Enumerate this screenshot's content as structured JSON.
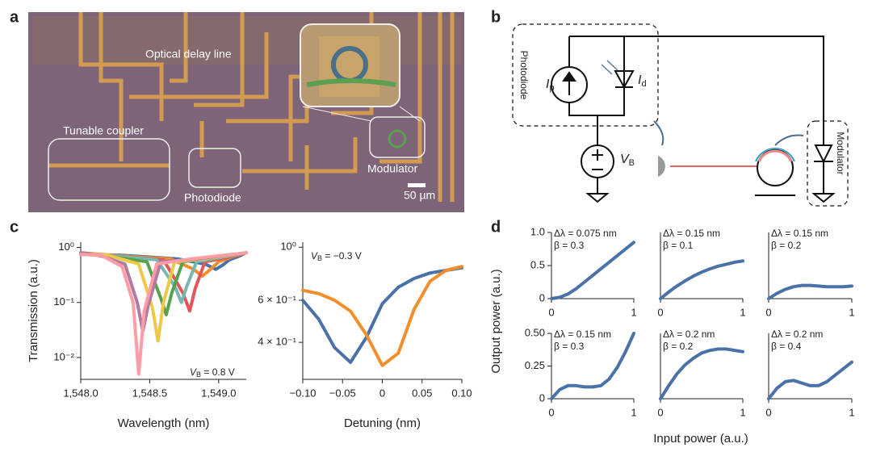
{
  "panel_labels": [
    "a",
    "b",
    "c",
    "d"
  ],
  "micrograph": {
    "labels": [
      "Optical delay line",
      "Tunable coupler",
      "Photodiode",
      "Modulator"
    ],
    "scale_bar": "50 µm"
  },
  "circuit": {
    "photodiode": "Photodiode",
    "modulator": "Modulator",
    "ip": {
      "main": "I",
      "sub": "p"
    },
    "id": {
      "main": "I",
      "sub": "d"
    },
    "vb": {
      "main": "V",
      "sub": "B"
    }
  },
  "panel_d_axes": {
    "xlabel": "Input power (a.u.)",
    "ylabel": "Output power (a.u.)"
  },
  "chart_data": [
    {
      "type": "line",
      "log_y": true,
      "xlabel": "Wavelength (nm)",
      "ylabel": "Transmission (a.u.)",
      "xlim": [
        1548.0,
        1549.2
      ],
      "ylim": [
        0.004,
        1.25
      ],
      "xticks": [
        {
          "value": 1548.0,
          "label": "1,548.0"
        },
        {
          "value": 1548.5,
          "label": "1,548.5"
        },
        {
          "value": 1549.0,
          "label": "1,549.0"
        }
      ],
      "yticks": [
        {
          "value": 1,
          "label": "10⁰"
        },
        {
          "value": 0.1,
          "label": "10⁻¹"
        },
        {
          "value": 0.01,
          "label": "10⁻²"
        }
      ],
      "annotation": {
        "main": "V",
        "sub": "B",
        "rest": " = 0.8 V"
      },
      "series": [
        {
          "color": "#4a72a8",
          "x": [
            1548.0,
            1548.3,
            1548.7,
            1548.9,
            1548.98,
            1549.03,
            1549.08,
            1549.15,
            1549.2
          ],
          "values": [
            0.75,
            0.72,
            0.62,
            0.5,
            0.4,
            0.48,
            0.6,
            0.7,
            0.8
          ]
        },
        {
          "color": "#f28e2b",
          "x": [
            1548.0,
            1548.3,
            1548.65,
            1548.82,
            1548.88,
            1548.93,
            1549.0,
            1549.1,
            1549.2
          ],
          "values": [
            0.8,
            0.7,
            0.62,
            0.4,
            0.3,
            0.38,
            0.55,
            0.68,
            0.8
          ]
        },
        {
          "color": "#e15759",
          "x": [
            1548.0,
            1548.25,
            1548.6,
            1548.74,
            1548.79,
            1548.83,
            1548.9,
            1549.05,
            1549.2
          ],
          "values": [
            0.8,
            0.7,
            0.6,
            0.15,
            0.07,
            0.18,
            0.55,
            0.65,
            0.8
          ]
        },
        {
          "color": "#76b7b2",
          "x": [
            1548.0,
            1548.25,
            1548.55,
            1548.68,
            1548.73,
            1548.77,
            1548.84,
            1549.0,
            1549.2
          ],
          "values": [
            0.75,
            0.7,
            0.6,
            0.2,
            0.1,
            0.2,
            0.55,
            0.65,
            0.8
          ]
        },
        {
          "color": "#59a14f",
          "x": [
            1548.0,
            1548.2,
            1548.48,
            1548.58,
            1548.62,
            1548.66,
            1548.74,
            1548.95,
            1549.2
          ],
          "values": [
            0.8,
            0.7,
            0.55,
            0.12,
            0.06,
            0.15,
            0.55,
            0.65,
            0.8
          ]
        },
        {
          "color": "#edc948",
          "x": [
            1548.0,
            1548.2,
            1548.42,
            1548.52,
            1548.56,
            1548.6,
            1548.68,
            1548.9,
            1549.2
          ],
          "values": [
            0.78,
            0.72,
            0.5,
            0.08,
            0.02,
            0.1,
            0.55,
            0.62,
            0.8
          ]
        },
        {
          "color": "#b07aa1",
          "x": [
            1548.0,
            1548.15,
            1548.32,
            1548.41,
            1548.45,
            1548.49,
            1548.58,
            1548.85,
            1549.2
          ],
          "values": [
            0.8,
            0.7,
            0.5,
            0.1,
            0.03,
            0.09,
            0.55,
            0.62,
            0.8
          ]
        },
        {
          "color": "#ff9da7",
          "x": [
            1548.0,
            1548.15,
            1548.3,
            1548.38,
            1548.42,
            1548.46,
            1548.55,
            1548.8,
            1549.2
          ],
          "values": [
            0.75,
            0.72,
            0.45,
            0.1,
            0.005,
            0.07,
            0.5,
            0.62,
            0.8
          ]
        }
      ]
    },
    {
      "type": "line",
      "log_y": true,
      "xlabel": "Detuning (nm)",
      "xlim": [
        -0.1,
        0.1
      ],
      "ylim": [
        0.28,
        1.05
      ],
      "xticks": [
        {
          "value": -0.1,
          "label": "−0.10"
        },
        {
          "value": -0.05,
          "label": "−0.05"
        },
        0,
        0.05,
        {
          "value": 0.1,
          "label": "0.10"
        }
      ],
      "yticks": [
        {
          "value": 1,
          "label": "10⁰"
        },
        {
          "value": 0.6,
          "label": "6 × 10⁻¹"
        },
        {
          "value": 0.4,
          "label": "4 × 10⁻¹"
        }
      ],
      "annotation": {
        "main": "V",
        "sub": "B",
        "rest": " = −0.3 V"
      },
      "series": [
        {
          "color": "#4a72a8",
          "x": [
            -0.1,
            -0.08,
            -0.06,
            -0.04,
            -0.02,
            0,
            0.02,
            0.04,
            0.06,
            0.08,
            0.1
          ],
          "values": [
            0.6,
            0.5,
            0.38,
            0.33,
            0.42,
            0.58,
            0.68,
            0.74,
            0.78,
            0.8,
            0.82
          ]
        },
        {
          "color": "#f28e2b",
          "x": [
            -0.1,
            -0.08,
            -0.06,
            -0.04,
            -0.02,
            0,
            0.02,
            0.04,
            0.06,
            0.08,
            0.1
          ],
          "values": [
            0.66,
            0.64,
            0.6,
            0.54,
            0.43,
            0.32,
            0.36,
            0.55,
            0.72,
            0.8,
            0.83
          ]
        }
      ]
    },
    {
      "type": "line",
      "xlim": [
        0,
        1
      ],
      "ylim": [
        0,
        1
      ],
      "xticks": [
        0,
        1
      ],
      "yticks": [
        0,
        0.5,
        {
          "value": 1,
          "label": "1.0"
        }
      ],
      "annotations": [
        "Δλ = 0.075 nm",
        "β = 0.3"
      ],
      "color": "#4a72a8",
      "x": [
        0,
        0.1,
        0.2,
        0.3,
        0.4,
        0.5,
        0.6,
        0.7,
        0.8,
        0.9,
        1
      ],
      "values": [
        0,
        0.02,
        0.07,
        0.15,
        0.25,
        0.35,
        0.45,
        0.55,
        0.65,
        0.75,
        0.85
      ]
    },
    {
      "type": "line",
      "xlim": [
        0,
        1
      ],
      "ylim": [
        0,
        1
      ],
      "xticks": [
        0,
        1
      ],
      "annotations": [
        "Δλ = 0.15 nm",
        "β = 0.1"
      ],
      "color": "#4a72a8",
      "x": [
        0,
        0.1,
        0.2,
        0.3,
        0.4,
        0.5,
        0.6,
        0.7,
        0.8,
        0.9,
        1
      ],
      "values": [
        0,
        0.1,
        0.19,
        0.27,
        0.34,
        0.4,
        0.45,
        0.49,
        0.52,
        0.55,
        0.57
      ]
    },
    {
      "type": "line",
      "xlim": [
        0,
        1
      ],
      "ylim": [
        0,
        1
      ],
      "xticks": [
        0,
        1
      ],
      "annotations": [
        "Δλ = 0.15 nm",
        "β = 0.2"
      ],
      "color": "#4a72a8",
      "x": [
        0,
        0.1,
        0.2,
        0.3,
        0.4,
        0.5,
        0.6,
        0.7,
        0.8,
        0.9,
        1
      ],
      "values": [
        0,
        0.08,
        0.14,
        0.18,
        0.2,
        0.2,
        0.19,
        0.18,
        0.18,
        0.18,
        0.19
      ]
    },
    {
      "type": "line",
      "xlim": [
        0,
        1
      ],
      "ylim": [
        0,
        0.5
      ],
      "xticks": [
        0,
        1
      ],
      "yticks": [
        0,
        0.25,
        {
          "value": 0.5,
          "label": "0.50"
        }
      ],
      "annotations": [
        "Δλ = 0.15 nm",
        "β = 0.3"
      ],
      "color": "#4a72a8",
      "x": [
        0,
        0.1,
        0.2,
        0.3,
        0.4,
        0.5,
        0.6,
        0.7,
        0.8,
        0.9,
        1
      ],
      "values": [
        0,
        0.07,
        0.1,
        0.1,
        0.09,
        0.09,
        0.1,
        0.15,
        0.24,
        0.36,
        0.5
      ]
    },
    {
      "type": "line",
      "xlim": [
        0,
        1
      ],
      "ylim": [
        0,
        0.5
      ],
      "xticks": [
        0,
        1
      ],
      "annotations": [
        "Δλ = 0.2 nm",
        "β = 0.2"
      ],
      "color": "#4a72a8",
      "x": [
        0,
        0.1,
        0.2,
        0.3,
        0.4,
        0.5,
        0.6,
        0.7,
        0.8,
        0.9,
        1
      ],
      "values": [
        0,
        0.1,
        0.19,
        0.26,
        0.31,
        0.35,
        0.37,
        0.38,
        0.38,
        0.37,
        0.36
      ]
    },
    {
      "type": "line",
      "xlim": [
        0,
        1
      ],
      "ylim": [
        0,
        0.5
      ],
      "xticks": [
        0,
        1
      ],
      "annotations": [
        "Δλ = 0.2 nm",
        "β = 0.4"
      ],
      "color": "#4a72a8",
      "x": [
        0,
        0.1,
        0.2,
        0.3,
        0.4,
        0.5,
        0.6,
        0.7,
        0.8,
        0.9,
        1
      ],
      "values": [
        0,
        0.08,
        0.13,
        0.14,
        0.12,
        0.1,
        0.1,
        0.13,
        0.18,
        0.23,
        0.28
      ]
    }
  ]
}
